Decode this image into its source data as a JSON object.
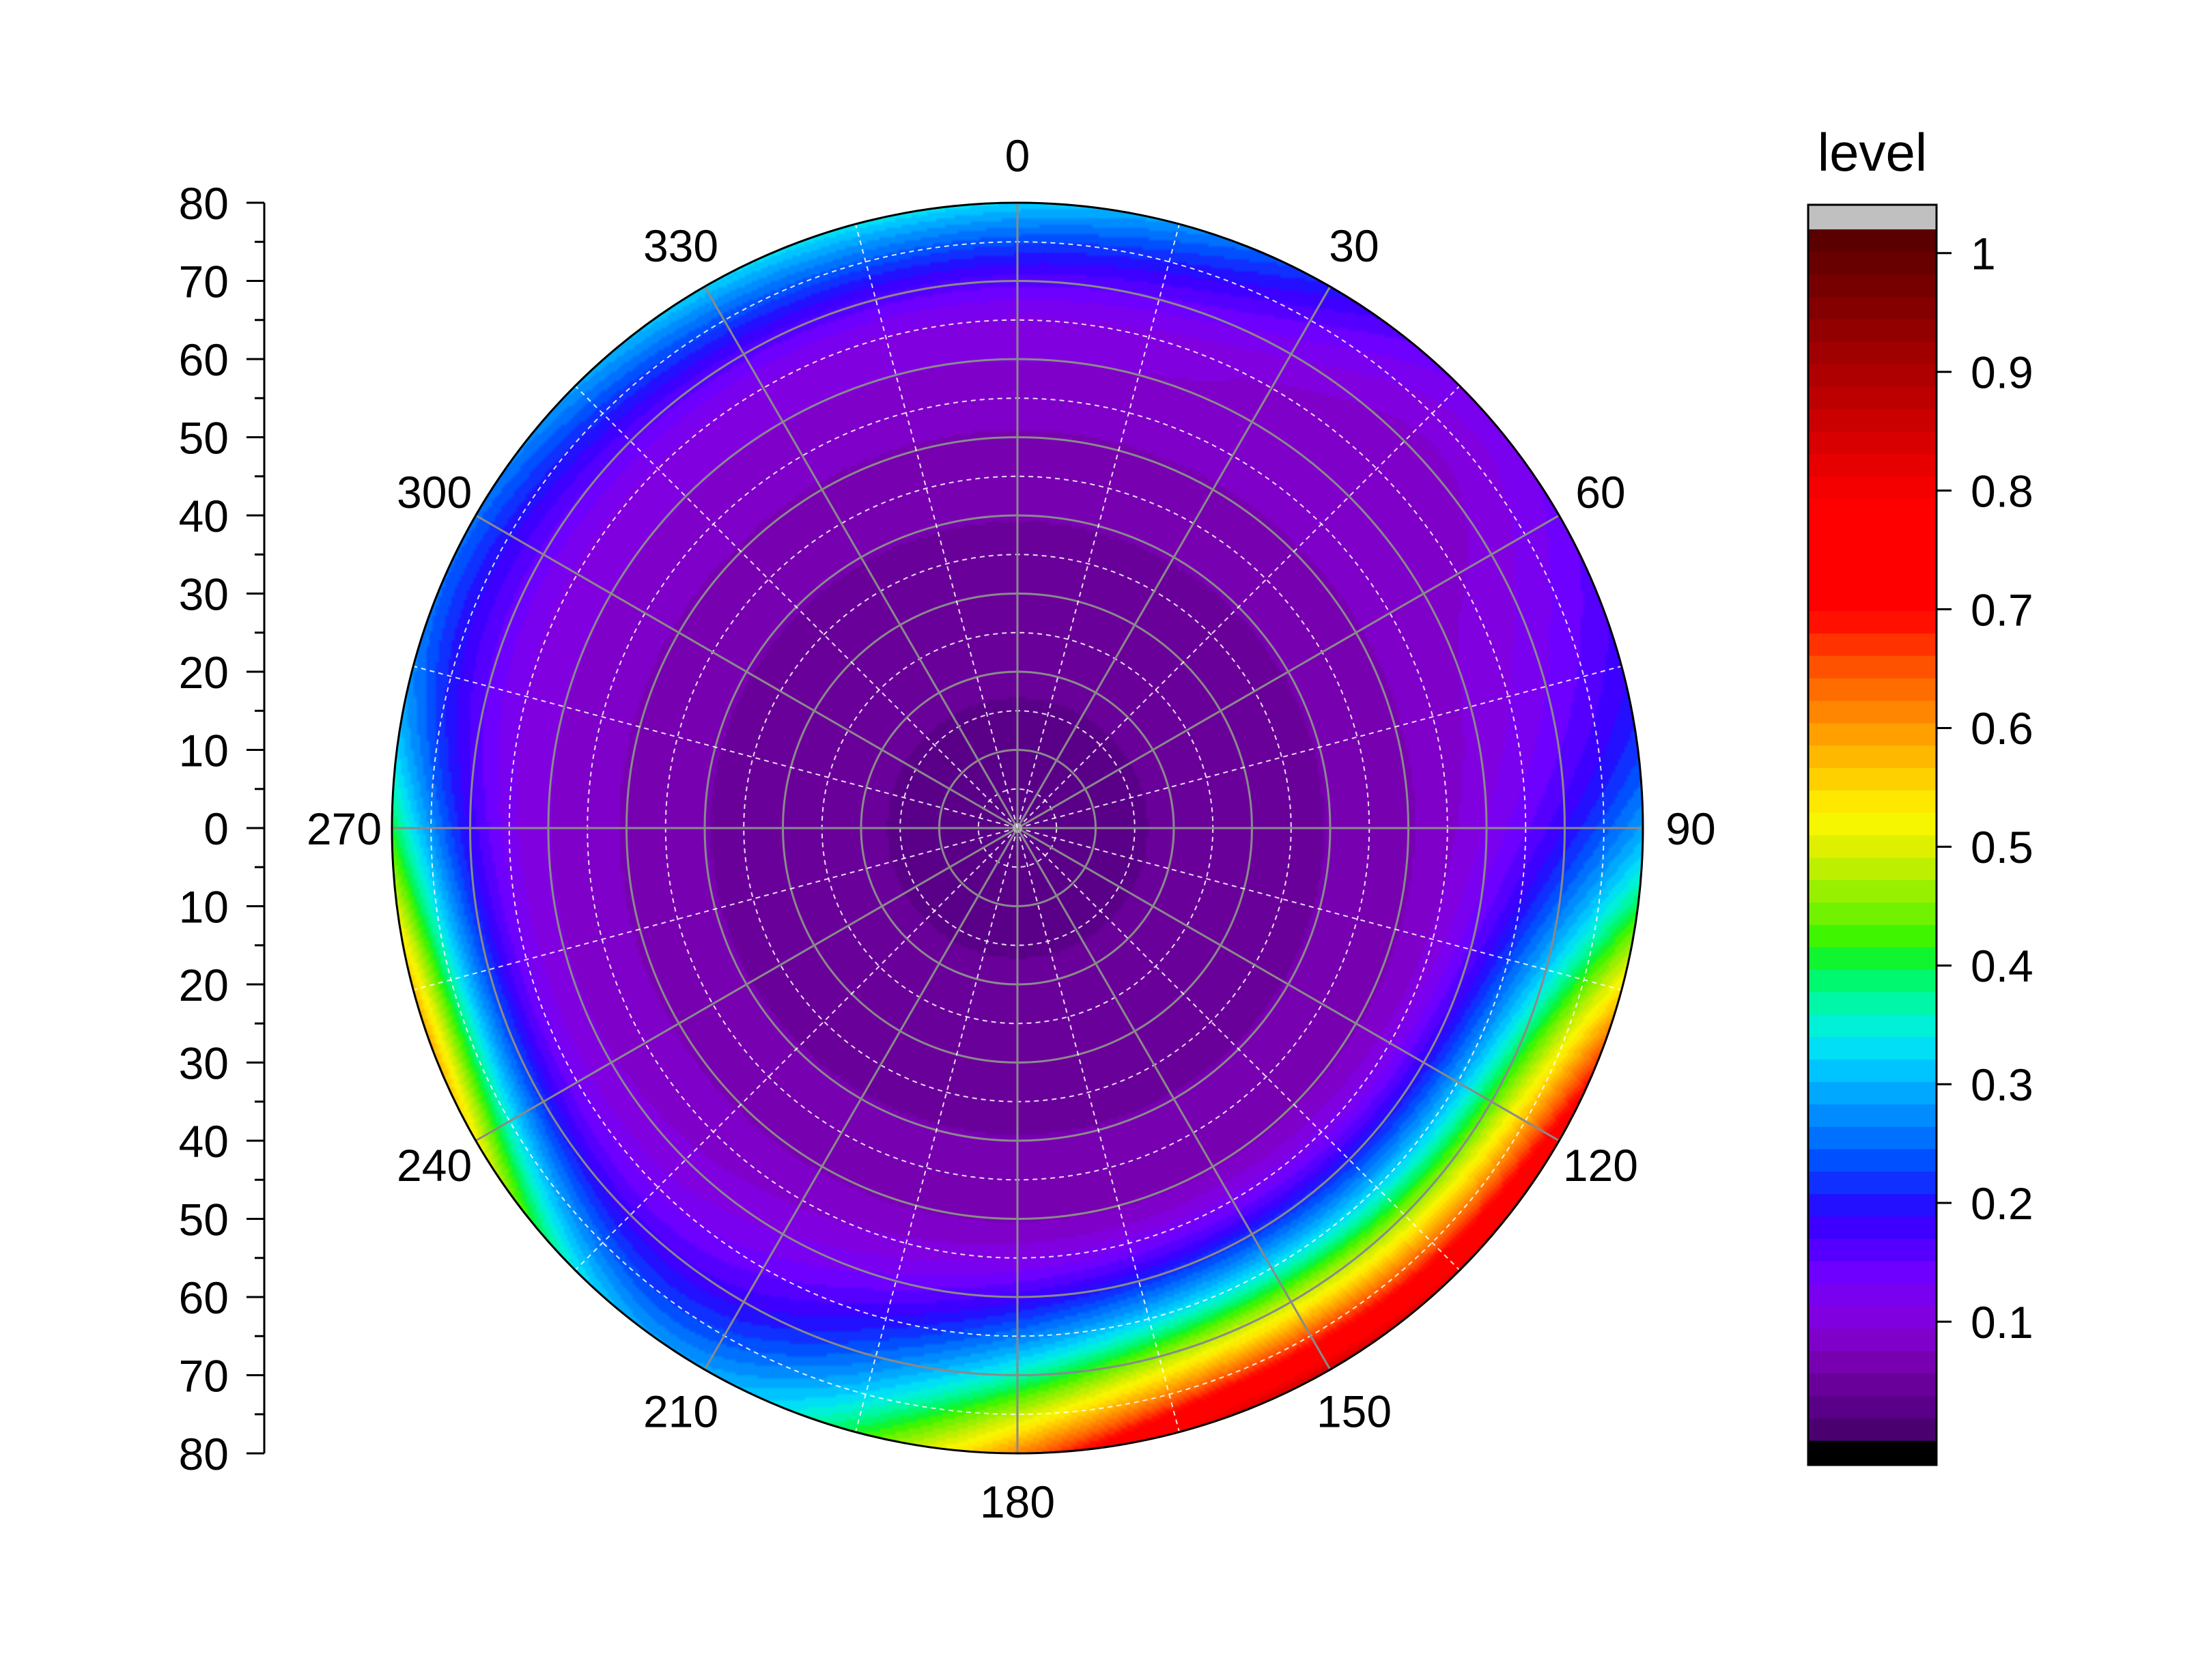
{
  "chart_data": {
    "type": "heatmap",
    "subtype": "polar-contour",
    "title": "",
    "angular_axis": {
      "ticks": [
        0,
        30,
        60,
        90,
        120,
        150,
        180,
        210,
        240,
        270,
        300,
        330
      ],
      "direction": "clockwise",
      "zero_at": "top"
    },
    "radial_axis": {
      "range": [
        0,
        80
      ],
      "tick_labels_top_to_bottom": [
        "80",
        "70",
        "60",
        "50",
        "40",
        "30",
        "20",
        "10",
        "0",
        "10",
        "20",
        "30",
        "40",
        "50",
        "60",
        "70",
        "80"
      ],
      "gridlines": "solid grey major rings every 10, dashed white minor rings every 5"
    },
    "colorbar": {
      "title": "level",
      "range": [
        0,
        1.02
      ],
      "ticks": [
        "0.1",
        "0.2",
        "0.3",
        "0.4",
        "0.5",
        "0.6",
        "0.7",
        "0.8",
        "0.9",
        "1"
      ],
      "top_cap_color": "#c0c0c0",
      "bottom_cap_color": "#000000"
    },
    "palette": [
      "#4b0070",
      "#5a0088",
      "#6a009a",
      "#7700b0",
      "#7f00c8",
      "#8100e0",
      "#7a00f0",
      "#6d00ff",
      "#5500ff",
      "#3d00ff",
      "#2210ff",
      "#1030ff",
      "#0050ff",
      "#0070ff",
      "#008cff",
      "#00a8ff",
      "#00c4ff",
      "#00dff5",
      "#00f0d8",
      "#00f7a8",
      "#00f870",
      "#10f530",
      "#40f500",
      "#70f200",
      "#98f000",
      "#bdf000",
      "#def000",
      "#f6f600",
      "#ffe800",
      "#ffd000",
      "#ffb800",
      "#ff9f00",
      "#ff8600",
      "#ff6c00",
      "#ff5200",
      "#ff3200",
      "#ff1000",
      "#ff0000",
      "#ff0000",
      "#ff0000",
      "#ff0000",
      "#ff0000",
      "#f40000",
      "#e60000",
      "#d80000",
      "#ca0000",
      "#bc0000",
      "#ae0000",
      "#a00000",
      "#920000",
      "#840000",
      "#760000",
      "#680000",
      "#5a0000"
    ],
    "pattern": "Low values (about 0.03-0.08) cover the centre of the disk, rising towards the rim; the highest values (up to about 0.75) sit at the outer edge between roughly 110 and 190 degrees, with a secondary green/yellow band near 240-270 degrees.",
    "field_model": {
      "base": [
        0.035,
        0.12
      ],
      "rim_bumps": [
        {
          "angle": 155,
          "width": 40,
          "amp": 0.68,
          "onset": 0.62,
          "power": 1.6
        },
        {
          "angle": 115,
          "width": 22,
          "amp": 0.3,
          "onset": 0.65,
          "power": 1.6
        },
        {
          "angle": 250,
          "width": 25,
          "amp": 0.42,
          "onset": 0.75,
          "power": 2.0
        },
        {
          "angle": 345,
          "width": 55,
          "amp": 0.18,
          "onset": 0.8,
          "power": 1.5
        },
        {
          "angle": 45,
          "width": 20,
          "amp": -0.08,
          "onset": 0.7,
          "power": 1.0
        }
      ]
    }
  }
}
